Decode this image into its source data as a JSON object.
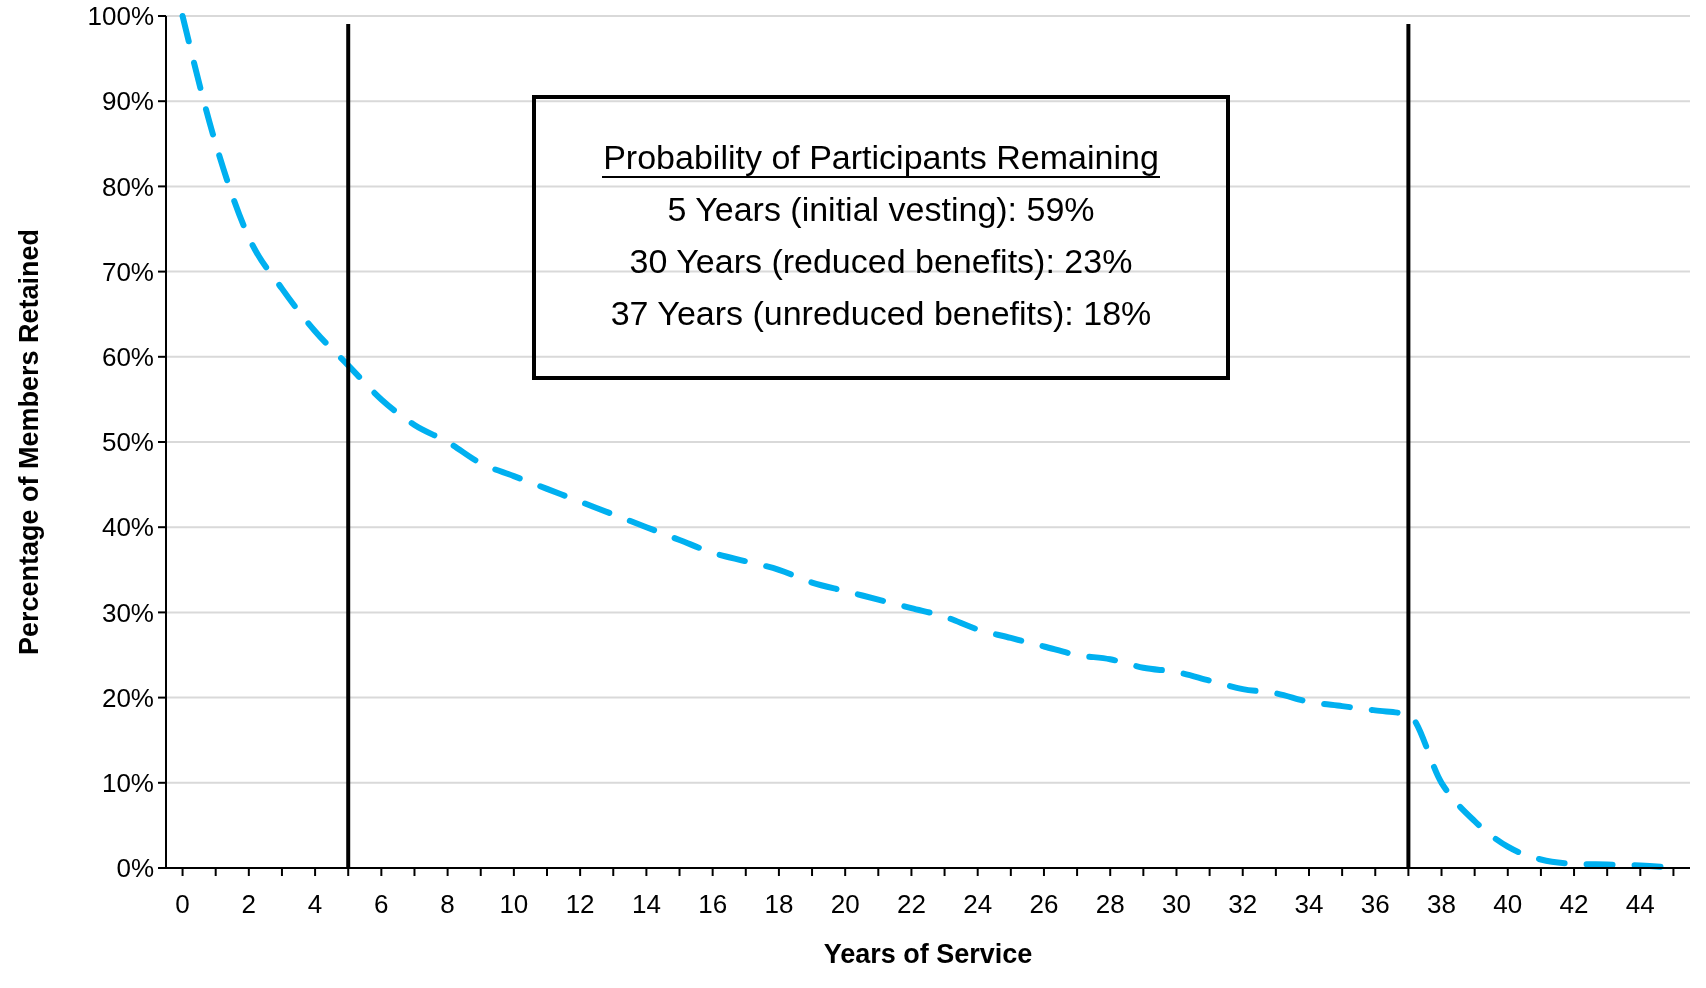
{
  "chart_data": {
    "type": "line",
    "xlabel": "Years of Service",
    "ylabel": "Percentage of Members Retained",
    "x": [
      0,
      1,
      2,
      3,
      4,
      5,
      6,
      7,
      8,
      9,
      10,
      11,
      12,
      13,
      14,
      15,
      16,
      17,
      18,
      19,
      20,
      21,
      22,
      23,
      24,
      25,
      26,
      27,
      28,
      29,
      30,
      31,
      32,
      33,
      34,
      35,
      36,
      37,
      38,
      39,
      40,
      41,
      42,
      43,
      44,
      45
    ],
    "series": [
      {
        "color": "#00b0f0",
        "values": [
          100,
          85,
          74,
          68,
          63,
          59,
          55,
          52,
          50,
          47.5,
          46,
          44.5,
          43,
          41.5,
          40,
          38.5,
          37,
          36,
          35,
          33.5,
          32.5,
          31.5,
          30.5,
          29.5,
          28,
          27,
          26,
          25,
          24.5,
          23.5,
          23,
          22,
          21,
          20.5,
          19.5,
          19,
          18.5,
          18,
          10,
          5.5,
          2.5,
          1,
          0.5,
          0.4,
          0.3,
          0
        ]
      }
    ],
    "xlim": [
      -0.5,
      45.5
    ],
    "xticks": [
      0,
      {
        "value": 1,
        "label": null
      },
      2,
      {
        "value": 3,
        "label": null
      },
      4,
      {
        "value": 5,
        "label": null
      },
      6,
      {
        "value": 7,
        "label": null
      },
      8,
      {
        "value": 9,
        "label": null
      },
      10,
      {
        "value": 11,
        "label": null
      },
      12,
      {
        "value": 13,
        "label": null
      },
      14,
      {
        "value": 15,
        "label": null
      },
      16,
      {
        "value": 17,
        "label": null
      },
      18,
      {
        "value": 19,
        "label": null
      },
      20,
      {
        "value": 21,
        "label": null
      },
      22,
      {
        "value": 23,
        "label": null
      },
      24,
      {
        "value": 25,
        "label": null
      },
      26,
      {
        "value": 27,
        "label": null
      },
      28,
      {
        "value": 29,
        "label": null
      },
      30,
      {
        "value": 31,
        "label": null
      },
      32,
      {
        "value": 33,
        "label": null
      },
      34,
      {
        "value": 35,
        "label": null
      },
      36,
      {
        "value": 37,
        "label": null
      },
      38,
      {
        "value": 39,
        "label": null
      },
      40,
      {
        "value": 41,
        "label": null
      },
      42,
      {
        "value": 43,
        "label": null
      },
      44,
      {
        "value": 45,
        "label": null
      }
    ],
    "ylim": [
      0,
      100
    ],
    "yticks": [
      {
        "value": 0,
        "label": "0%"
      },
      {
        "value": 10,
        "label": "10%"
      },
      {
        "value": 20,
        "label": "20%"
      },
      {
        "value": 30,
        "label": "30%"
      },
      {
        "value": 40,
        "label": "40%"
      },
      {
        "value": 50,
        "label": "50%"
      },
      {
        "value": 60,
        "label": "60%"
      },
      {
        "value": 70,
        "label": "70%"
      },
      {
        "value": 80,
        "label": "80%"
      },
      {
        "value": 90,
        "label": "90%"
      },
      {
        "value": 100,
        "label": "100%"
      }
    ],
    "grid": "y",
    "marker": "none",
    "line_style": "dashed",
    "ref_lines": [
      {
        "axis": "x",
        "value": 5,
        "color": "#000000"
      },
      {
        "axis": "x",
        "value": 37,
        "color": "#000000"
      }
    ],
    "annotations": [
      "Probability of Participants Remaining",
      "5 Years (initial vesting): 59%",
      "30 Years (reduced benefits): 23%",
      "37 Years (unreduced benefits): 18%"
    ]
  }
}
